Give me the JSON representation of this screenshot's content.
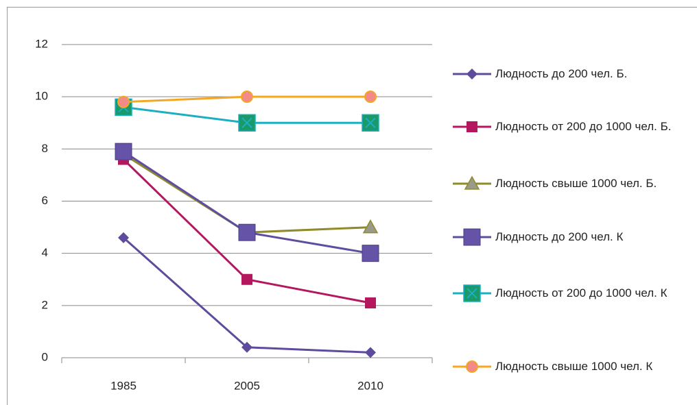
{
  "chart_data": {
    "type": "line",
    "categories": [
      "1985",
      "2005",
      "2010"
    ],
    "ylim": [
      0,
      12
    ],
    "yticks": [
      0,
      2,
      4,
      6,
      8,
      10,
      12
    ],
    "grid": true,
    "series": [
      {
        "name": "Людность до 200 чел. Б.",
        "color": "#5f4b9c",
        "marker": "diamond",
        "marker_color": "#5f4b9c",
        "values": [
          4.6,
          0.4,
          0.2
        ]
      },
      {
        "name": "Людность от 200 до 1000 чел. Б.",
        "color": "#b5175f",
        "marker": "square",
        "marker_color": "#b5175f",
        "values": [
          7.6,
          3.0,
          2.1
        ]
      },
      {
        "name": "Людность свыше 1000 чел. Б.",
        "color": "#8f8a2a",
        "marker": "triangle",
        "marker_color": "#9a9a88",
        "values": [
          7.8,
          4.8,
          5.0
        ]
      },
      {
        "name": "Людность до 200 чел. К",
        "color": "#5f4ea0",
        "marker": "bigsquare",
        "marker_color": "#6453a6",
        "values": [
          7.9,
          4.8,
          4.0
        ]
      },
      {
        "name": "Людность от 200 до 1000 чел. К",
        "color": "#1aafc2",
        "marker": "cross",
        "marker_color": "#1a9a6a",
        "values": [
          9.6,
          9.0,
          9.0
        ]
      },
      {
        "name": "Людность свыше 1000 чел. К",
        "color": "#f5a623",
        "marker": "circle",
        "marker_color": "#f28a8a",
        "values": [
          9.8,
          10.0,
          10.0
        ]
      }
    ]
  }
}
